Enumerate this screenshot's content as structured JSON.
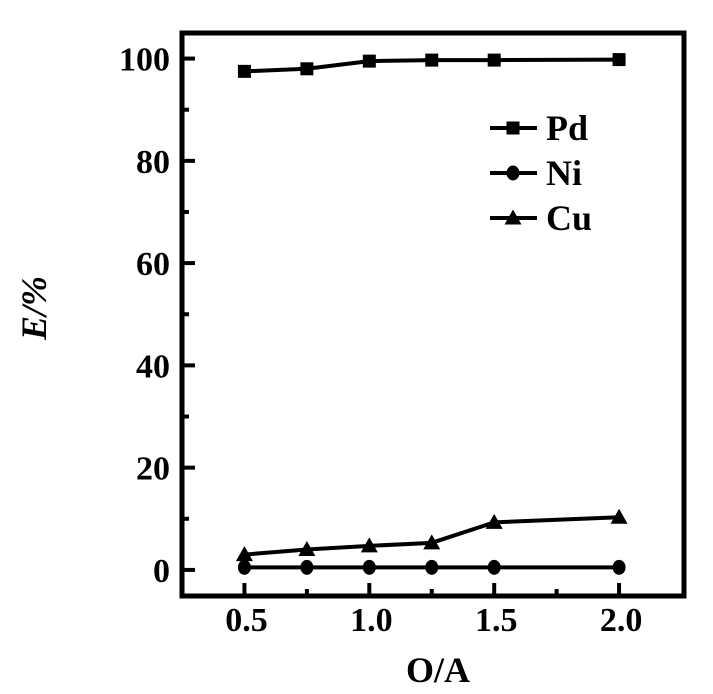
{
  "chart_data": {
    "type": "line",
    "title": "",
    "xlabel": "O/A",
    "ylabel": "E/%",
    "x": [
      0.5,
      0.75,
      1.0,
      1.25,
      1.5,
      2.0
    ],
    "series": [
      {
        "name": "Pd",
        "marker": "square",
        "values": [
          97.5,
          98.0,
          99.5,
          99.7,
          99.7,
          99.8
        ]
      },
      {
        "name": "Ni",
        "marker": "circle",
        "values": [
          0.5,
          0.5,
          0.5,
          0.5,
          0.5,
          0.5
        ]
      },
      {
        "name": "Cu",
        "marker": "triangle",
        "values": [
          3.0,
          4.0,
          4.7,
          5.3,
          9.3,
          10.3
        ]
      }
    ],
    "x_ticks_major": [
      0.5,
      1.0,
      1.5,
      2.0
    ],
    "x_tick_labels": [
      "0.5",
      "1.0",
      "1.5",
      "2.0"
    ],
    "x_ticks_minor": [
      0.75,
      1.25,
      1.75
    ],
    "y_ticks_major": [
      0,
      20,
      40,
      60,
      80,
      100
    ],
    "y_tick_labels": [
      "0",
      "20",
      "40",
      "60",
      "80",
      "100"
    ],
    "y_ticks_minor": [
      10,
      30,
      50,
      70,
      90
    ],
    "xlim": [
      0.25,
      2.26
    ],
    "ylim": [
      -5.1,
      105
    ],
    "grid": false,
    "legend_position": "upper-right-inside",
    "legend_items": [
      "Pd",
      "Ni",
      "Cu"
    ],
    "line_color": "#000000",
    "background": "#ffffff"
  }
}
